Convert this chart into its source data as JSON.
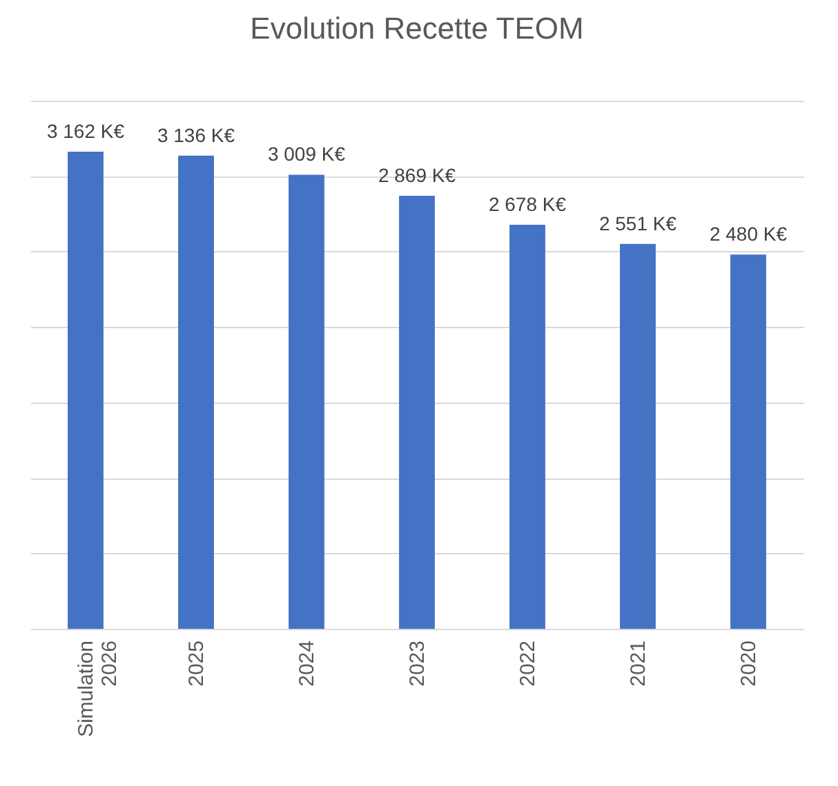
{
  "chart_data": {
    "type": "bar",
    "title": "Evolution Recette TEOM",
    "categories": [
      "Simulation 2026",
      "2025",
      "2024",
      "2023",
      "2022",
      "2021",
      "2020"
    ],
    "values": [
      3162,
      3136,
      3009,
      2869,
      2678,
      2551,
      2480
    ],
    "value_labels": [
      "3 162 K€",
      "3 136 K€",
      "3 009 K€",
      "2 869 K€",
      "2 678 K€",
      "2 551 K€",
      "2 480 K€"
    ],
    "color": "#4472c4",
    "ylim": [
      0,
      3500
    ],
    "yticks": [
      {
        "value": 0,
        "label": null
      },
      {
        "value": 500,
        "label": null
      },
      {
        "value": 1000,
        "label": null
      },
      {
        "value": 1500,
        "label": null
      },
      {
        "value": 2000,
        "label": null
      },
      {
        "value": 2500,
        "label": null
      },
      {
        "value": 3000,
        "label": null
      },
      {
        "value": 3500,
        "label": null
      }
    ],
    "grid": "y",
    "tick_labels": "x"
  }
}
